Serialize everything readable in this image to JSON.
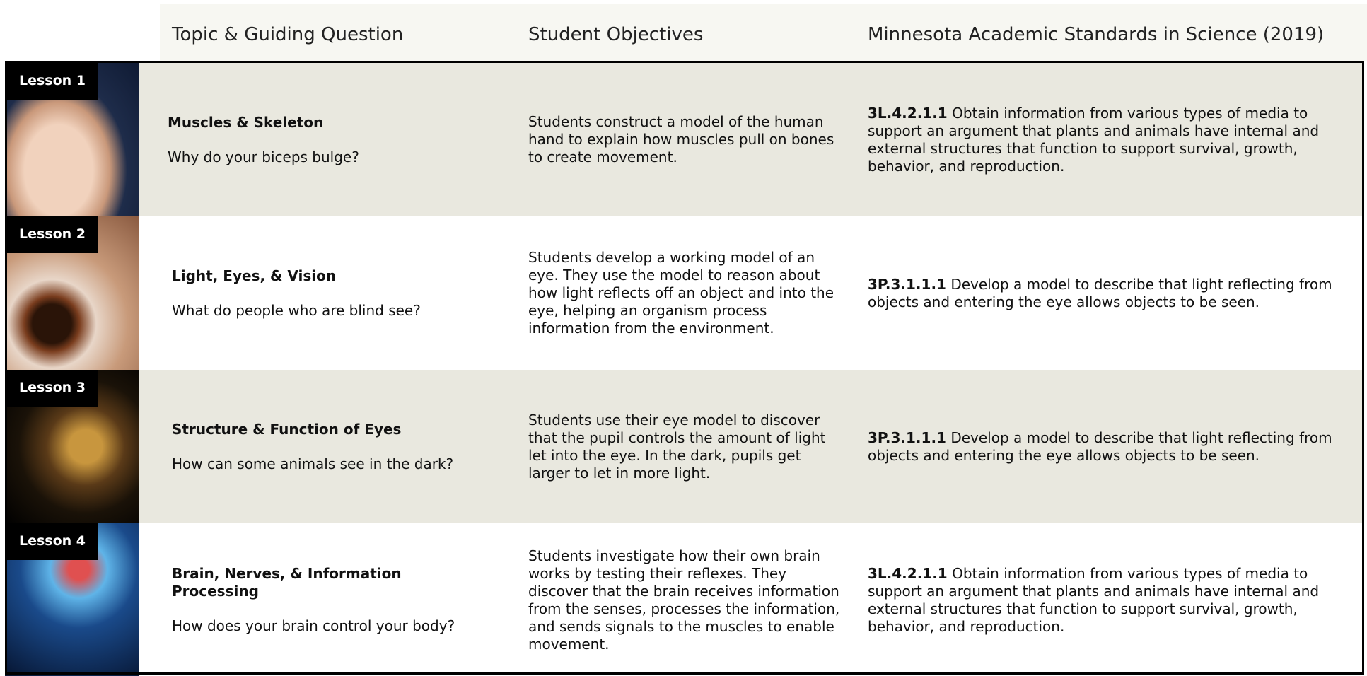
{
  "header": {
    "columns": [
      "Topic & Guiding Question",
      "Student Objectives",
      "Minnesota Academic Standards in Science (2019)"
    ]
  },
  "rows": [
    {
      "lesson": "Lesson 1",
      "topic": "Muscles & Skeleton",
      "question": "Why do your biceps bulge?",
      "objective": "Students construct a model of the human hand to explain how muscles pull on bones to create movement.",
      "standard_code": "3L.4.2.1.1",
      "standard_text": "Obtain information from various types of media to support an argument that plants and animals have internal and external structures that function to support survival, growth, behavior, and reproduction."
    },
    {
      "lesson": "Lesson 2",
      "topic": "Light, Eyes, & Vision",
      "question": "What do people who are blind see?",
      "objective": "Students develop a working model of an eye. They use the model to reason about how light reflects off an object and into the eye, helping an organism process information from the environment.",
      "standard_code": "3P.3.1.1.1",
      "standard_text": "Develop a model to describe that light reflecting from objects and entering the eye allows objects to be seen."
    },
    {
      "lesson": "Lesson 3",
      "topic": "Structure & Function of Eyes",
      "question": "How can some animals see in the dark?",
      "objective": "Students use their eye model to discover that the pupil controls the amount of light let into the eye. In the dark, pupils get larger to let in more light.",
      "standard_code": "3P.3.1.1.1",
      "standard_text": "Develop a model to describe that light reflecting from objects and entering the eye allows objects to be seen."
    },
    {
      "lesson": "Lesson 4",
      "topic": "Brain, Nerves, & Information Processing",
      "question": "How does your brain control your body?",
      "objective": "Students investigate how their own brain works by testing their reflexes. They discover that the brain receives information from the senses, processes the information, and sends signals to the muscles to enable movement.",
      "standard_code": "3L.4.2.1.1",
      "standard_text": "Obtain information from various types of media to support an argument that plants and animals have internal and external structures that function to support survival, growth, behavior, and reproduction."
    }
  ]
}
